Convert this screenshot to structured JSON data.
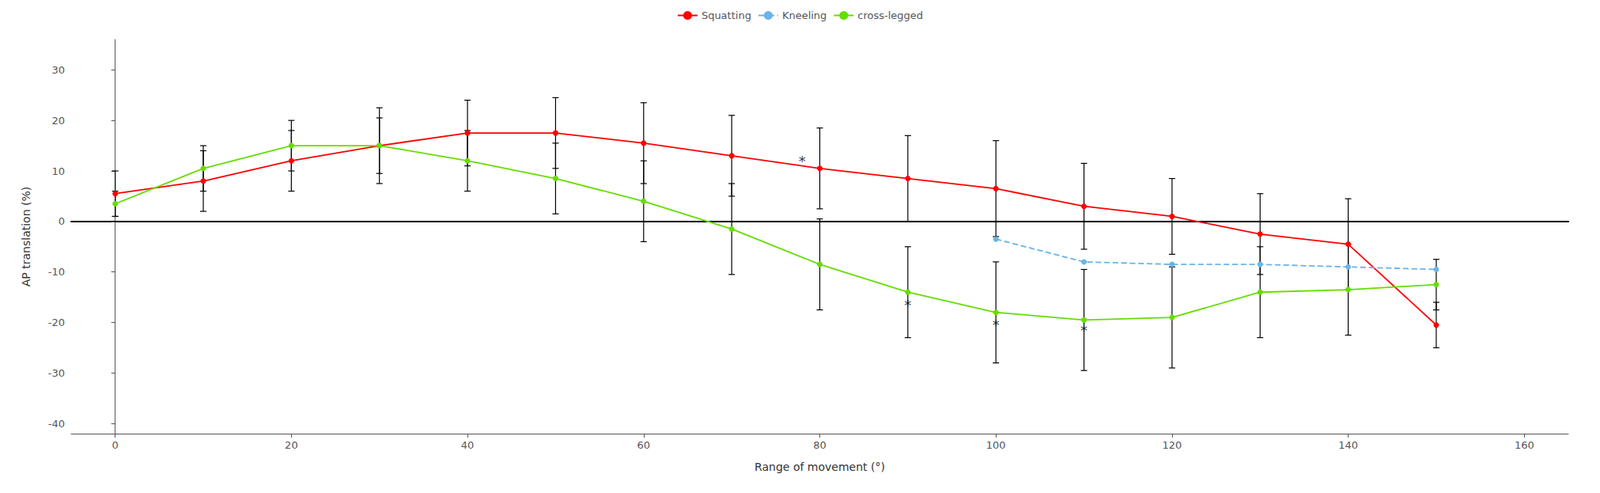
{
  "chart_data": {
    "type": "line",
    "xlabel": "Range of movement (°)",
    "ylabel": "AP translation (%)",
    "xlim": [
      -5,
      165
    ],
    "ylim": [
      -42,
      36
    ],
    "xticks": [
      0,
      20,
      40,
      60,
      80,
      100,
      120,
      140,
      160
    ],
    "yticks": [
      -40,
      -30,
      -20,
      -10,
      0,
      10,
      20,
      30
    ],
    "grid": false,
    "legend": "upper center",
    "series": [
      {
        "name": "Squatting",
        "color": "#ff0000",
        "marker": "circle",
        "line_style": "solid",
        "x": [
          0,
          10,
          20,
          30,
          40,
          50,
          60,
          70,
          80,
          90,
          100,
          110,
          120,
          130,
          140,
          150
        ],
        "values": [
          5.5,
          8.0,
          12.0,
          15.0,
          17.5,
          17.5,
          15.5,
          13.0,
          10.5,
          8.5,
          6.5,
          3.0,
          1.0,
          -2.5,
          -4.5,
          -20.5
        ],
        "errors": [
          4.5,
          6.0,
          6.0,
          7.5,
          6.5,
          7.0,
          8.0,
          8.0,
          8.0,
          8.5,
          9.5,
          8.5,
          7.5,
          8.0,
          9.0,
          4.5
        ]
      },
      {
        "name": "Kneeling",
        "color": "#6ab4e8",
        "marker": "circle",
        "line_style": "dashed",
        "x": [
          100,
          110,
          120,
          130,
          140,
          150
        ],
        "values": [
          -3.5,
          -8.0,
          -8.5,
          -8.5,
          -9.0,
          -9.5
        ]
      },
      {
        "name": "cross-legged",
        "color": "#66dd00",
        "marker": "circle",
        "line_style": "solid",
        "x": [
          0,
          10,
          20,
          30,
          40,
          50,
          60,
          70,
          80,
          90,
          100,
          110,
          120,
          130,
          140,
          150
        ],
        "values": [
          3.5,
          10.5,
          15.0,
          15.0,
          12.0,
          8.5,
          4.0,
          -1.5,
          -8.5,
          -14.0,
          -18.0,
          -19.5,
          -19.0,
          -14.0,
          -13.5,
          -12.5
        ],
        "errors": [
          2.5,
          4.5,
          5.0,
          5.5,
          6.0,
          7.0,
          8.0,
          9.0,
          9.0,
          9.0,
          10.0,
          10.0,
          10.0,
          9.0,
          9.0,
          5.0
        ]
      }
    ],
    "annotations": [
      {
        "text": "*",
        "x": 78,
        "y": 12.0
      },
      {
        "text": "*",
        "x": 90,
        "y": -16.5
      },
      {
        "text": "*",
        "x": 100,
        "y": -20.5
      },
      {
        "text": "*",
        "x": 110,
        "y": -21.5
      }
    ]
  }
}
